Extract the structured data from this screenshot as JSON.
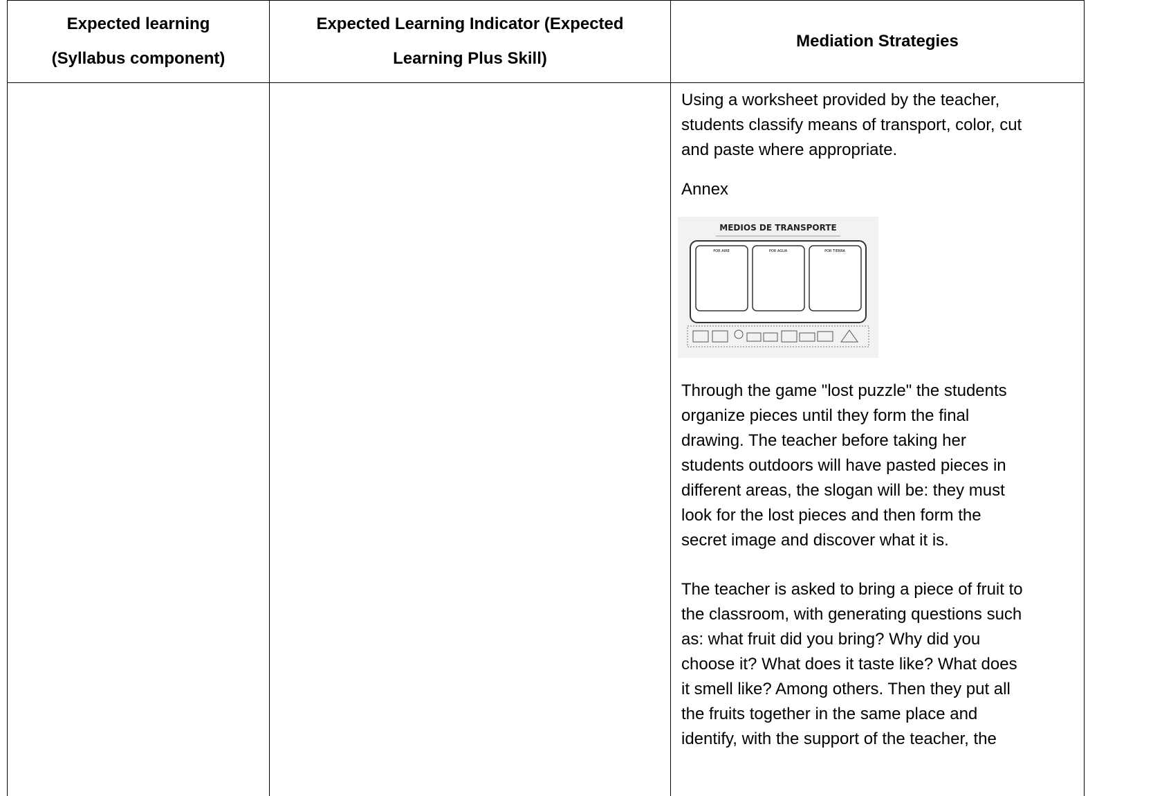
{
  "table": {
    "headers": [
      [
        "Expected learning",
        "(Syllabus component)"
      ],
      [
        "Expected Learning Indicator (Expected",
        "Learning Plus Skill)"
      ],
      [
        "Mediation Strategies"
      ]
    ],
    "rows": [
      [
        null,
        null,
        {
          "paragraphs_before": [
            [
              "Using a worksheet provided by the teacher,",
              "students classify means of transport, color, cut",
              "and paste where appropriate."
            ],
            [
              "Annex"
            ]
          ],
          "image": {
            "title": "MEDIOS DE TRANSPORTE",
            "boxes": [
              "POR AIRE",
              "POR AGUA",
              "POR TIERRA"
            ]
          },
          "paragraphs_after": [
            [
              "Through the game \"lost puzzle\" the students",
              "organize pieces until they form the final",
              "drawing. The teacher before taking her",
              "students outdoors will have pasted pieces in",
              "different areas, the slogan will be: they must",
              "look for the lost pieces and then form the",
              "secret image and discover what it is."
            ],
            [
              "The teacher is asked to bring a piece of fruit to",
              "the classroom, with generating questions such",
              "as: what fruit did you bring? Why did you",
              "choose it? What does it taste like? What does",
              "it smell like? Among others. Then they put all",
              "the fruits together in the same place and",
              "identify, with the support of the teacher, the"
            ]
          ]
        }
      ]
    ]
  }
}
